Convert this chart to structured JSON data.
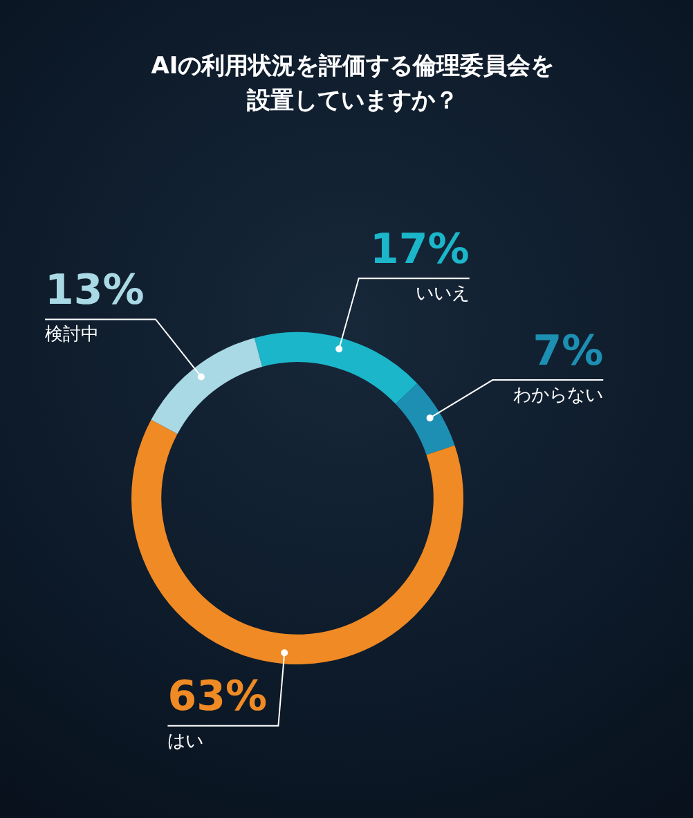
{
  "chart_data": {
    "type": "donut",
    "title": "AIの利用状況を評価する倫理委員会を設置していますか？",
    "categories": [
      "いいえ",
      "わからない",
      "はい",
      "検討中"
    ],
    "values": [
      17,
      7,
      63,
      13
    ],
    "value_labels": [
      "17%",
      "7%",
      "63%",
      "13%"
    ],
    "colors": [
      "#1bb6c9",
      "#1d8fb3",
      "#f08a24",
      "#a9d9e4"
    ],
    "legend": false
  }
}
